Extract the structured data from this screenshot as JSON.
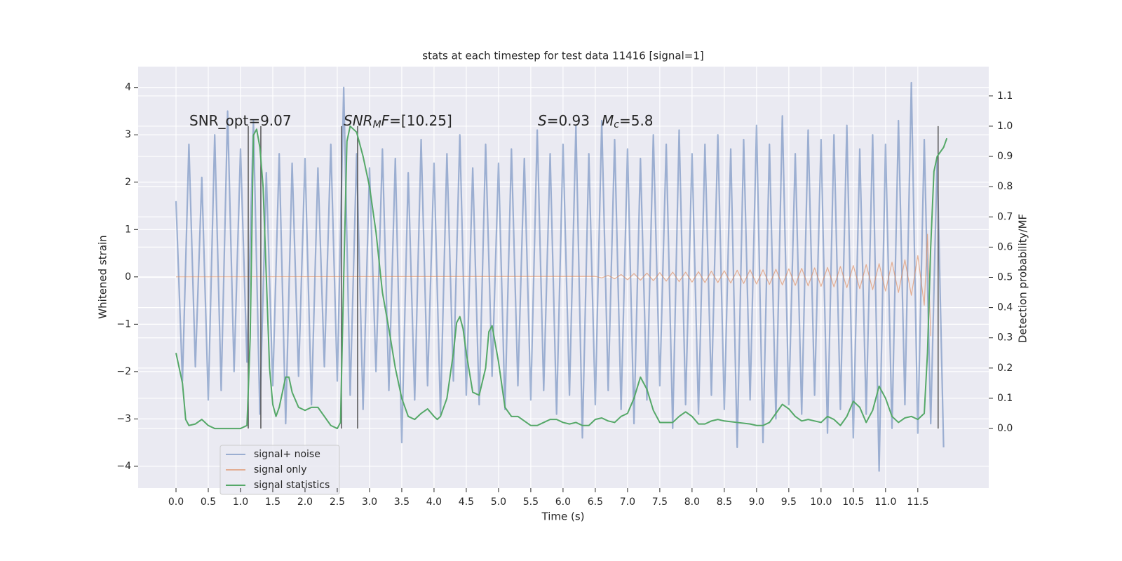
{
  "chart_data": {
    "type": "line",
    "title": "stats at each timestep for test data 11416 [signal=1]",
    "x_label": "Time (s)",
    "y_label": "Whitened strain",
    "y2_label": "Detection probability/MF",
    "xlim": [
      -0.587,
      12.6
    ],
    "ylim": [
      -4.46,
      4.44
    ],
    "y2lim": [
      -0.197,
      1.197
    ],
    "xticks": [
      {
        "value": 0,
        "label": "0.0"
      },
      0.5,
      {
        "value": 1,
        "label": "1.0"
      },
      1.5,
      {
        "value": 2,
        "label": "2.0"
      },
      2.5,
      {
        "value": 3,
        "label": "3.0"
      },
      3.5,
      {
        "value": 4,
        "label": "4.0"
      },
      4.5,
      {
        "value": 5,
        "label": "5.0"
      },
      5.5,
      {
        "value": 6,
        "label": "6.0"
      },
      6.5,
      {
        "value": 7,
        "label": "7.0"
      },
      7.5,
      {
        "value": 8,
        "label": "8.0"
      },
      8.5,
      {
        "value": 9,
        "label": "9.0"
      },
      9.5,
      {
        "value": 10,
        "label": "10.0"
      },
      10.5,
      {
        "value": 11,
        "label": "11.0"
      },
      11.5
    ],
    "yticks": [
      {
        "value": -4,
        "label": "−4"
      },
      {
        "value": -3,
        "label": "−3"
      },
      {
        "value": -2,
        "label": "−2"
      },
      {
        "value": -1,
        "label": "−1"
      },
      0,
      1,
      2,
      3,
      4
    ],
    "y2ticks": [
      {
        "value": 0,
        "label": "0.0"
      },
      0.1,
      0.2,
      0.3,
      0.4,
      0.5,
      0.6,
      0.7,
      0.8,
      0.9,
      {
        "value": 1,
        "label": "1.0"
      },
      1.1
    ],
    "grid": true,
    "legend": "lower left",
    "background": "#eaeaf2",
    "series": [
      {
        "name": "signal+ noise",
        "color": "#4c72b0",
        "opacity": 0.5,
        "x": [
          0.0,
          0.1,
          0.2,
          0.3,
          0.4,
          0.5,
          0.6,
          0.7,
          0.8,
          0.9,
          1.0,
          1.1,
          1.2,
          1.3,
          1.4,
          1.5,
          1.6,
          1.7,
          1.8,
          1.9,
          2.0,
          2.1,
          2.2,
          2.3,
          2.4,
          2.5,
          2.6,
          2.7,
          2.8,
          2.9,
          3.0,
          3.1,
          3.2,
          3.3,
          3.4,
          3.5,
          3.6,
          3.7,
          3.8,
          3.9,
          4.0,
          4.1,
          4.2,
          4.3,
          4.4,
          4.5,
          4.6,
          4.7,
          4.8,
          4.9,
          5.0,
          5.1,
          5.2,
          5.3,
          5.4,
          5.5,
          5.6,
          5.7,
          5.8,
          5.9,
          6.0,
          6.1,
          6.2,
          6.3,
          6.4,
          6.5,
          6.6,
          6.7,
          6.8,
          6.9,
          7.0,
          7.1,
          7.2,
          7.3,
          7.4,
          7.5,
          7.6,
          7.7,
          7.8,
          7.9,
          8.0,
          8.1,
          8.2,
          8.3,
          8.4,
          8.5,
          8.6,
          8.7,
          8.8,
          8.9,
          9.0,
          9.1,
          9.2,
          9.3,
          9.4,
          9.5,
          9.6,
          9.7,
          9.8,
          9.9,
          10.0,
          10.1,
          10.2,
          10.3,
          10.4,
          10.5,
          10.6,
          10.7,
          10.8,
          10.9,
          11.0,
          11.1,
          11.2,
          11.3,
          11.4,
          11.5,
          11.6,
          11.7,
          11.8,
          11.9
        ],
        "values": [
          1.6,
          -2.2,
          2.8,
          -1.9,
          2.1,
          -2.6,
          3.0,
          -2.4,
          3.5,
          -2.0,
          2.7,
          -1.8,
          3.3,
          -2.9,
          2.2,
          -2.3,
          2.6,
          -3.1,
          2.4,
          -2.1,
          2.5,
          -2.7,
          2.3,
          -1.9,
          2.8,
          -2.2,
          4.0,
          -2.5,
          2.6,
          -2.8,
          2.3,
          -2.0,
          2.7,
          -2.4,
          2.5,
          -3.5,
          2.2,
          -2.6,
          2.9,
          -2.3,
          2.4,
          -2.9,
          2.6,
          -2.2,
          3.0,
          -2.5,
          2.3,
          -2.7,
          2.8,
          -2.1,
          2.4,
          -2.8,
          2.7,
          -2.3,
          2.5,
          -2.6,
          3.1,
          -2.4,
          2.6,
          -2.9,
          2.8,
          -2.5,
          3.2,
          -3.4,
          2.6,
          -2.7,
          3.3,
          -2.4,
          2.9,
          -2.8,
          2.7,
          -3.1,
          2.5,
          -2.6,
          3.0,
          -2.3,
          2.8,
          -3.2,
          3.1,
          -2.7,
          2.6,
          -2.9,
          2.8,
          -2.5,
          3.0,
          -2.8,
          2.7,
          -3.6,
          2.9,
          -2.6,
          3.2,
          -3.5,
          2.8,
          -3.0,
          3.4,
          -2.7,
          2.6,
          -2.9,
          3.1,
          -2.5,
          2.9,
          -3.3,
          3.0,
          -2.8,
          3.2,
          -3.4,
          2.7,
          -2.9,
          3.0,
          -4.1,
          2.8,
          -3.2,
          3.3,
          -2.7,
          4.1,
          -3.3,
          2.9,
          -3.1,
          2.5,
          -3.6
        ]
      },
      {
        "name": "signal only",
        "color": "#dd8452",
        "opacity": 0.6,
        "x": [
          0.0,
          6.5,
          6.6,
          6.7,
          6.8,
          6.9,
          7.0,
          7.1,
          7.2,
          7.3,
          7.4,
          7.5,
          7.6,
          7.7,
          7.8,
          7.9,
          8.0,
          8.1,
          8.2,
          8.3,
          8.4,
          8.5,
          8.6,
          8.7,
          8.8,
          8.9,
          9.0,
          9.1,
          9.2,
          9.3,
          9.4,
          9.5,
          9.6,
          9.7,
          9.8,
          9.9,
          10.0,
          10.1,
          10.2,
          10.3,
          10.4,
          10.5,
          10.6,
          10.7,
          10.8,
          10.9,
          11.0,
          11.1,
          11.2,
          11.3,
          11.4,
          11.5,
          11.6,
          11.65,
          11.7
        ],
        "values": [
          0,
          0.01,
          -0.02,
          0.03,
          -0.04,
          0.05,
          -0.06,
          0.07,
          -0.07,
          0.08,
          -0.08,
          0.09,
          -0.09,
          0.1,
          -0.1,
          0.1,
          -0.11,
          0.11,
          -0.12,
          0.12,
          -0.12,
          0.13,
          -0.13,
          0.14,
          -0.14,
          0.15,
          -0.15,
          0.15,
          -0.16,
          0.16,
          -0.17,
          0.17,
          -0.18,
          0.18,
          -0.19,
          0.19,
          -0.2,
          0.2,
          -0.21,
          0.22,
          -0.23,
          0.24,
          -0.25,
          0.26,
          -0.27,
          0.28,
          -0.3,
          0.31,
          -0.33,
          0.36,
          -0.39,
          0.45,
          -0.6,
          0.9,
          -1.25
        ]
      },
      {
        "name": "signal statistics",
        "color": "#55a868",
        "opacity": 1,
        "axis": "y2",
        "x": [
          0.0,
          0.1,
          0.15,
          0.2,
          0.3,
          0.4,
          0.5,
          0.6,
          0.8,
          1.0,
          1.1,
          1.15,
          1.2,
          1.25,
          1.3,
          1.35,
          1.4,
          1.45,
          1.5,
          1.55,
          1.6,
          1.7,
          1.75,
          1.8,
          1.9,
          2.0,
          2.1,
          2.2,
          2.3,
          2.4,
          2.5,
          2.55,
          2.6,
          2.65,
          2.7,
          2.8,
          2.9,
          3.0,
          3.1,
          3.2,
          3.3,
          3.4,
          3.5,
          3.6,
          3.7,
          3.8,
          3.9,
          4.0,
          4.05,
          4.1,
          4.2,
          4.3,
          4.35,
          4.4,
          4.45,
          4.5,
          4.6,
          4.7,
          4.8,
          4.85,
          4.9,
          5.0,
          5.1,
          5.2,
          5.3,
          5.4,
          5.5,
          5.6,
          5.7,
          5.8,
          5.9,
          6.0,
          6.1,
          6.2,
          6.3,
          6.4,
          6.5,
          6.6,
          6.7,
          6.8,
          6.9,
          7.0,
          7.1,
          7.2,
          7.3,
          7.4,
          7.5,
          7.6,
          7.7,
          7.8,
          7.9,
          8.0,
          8.1,
          8.2,
          8.3,
          8.4,
          8.5,
          8.7,
          8.9,
          9.0,
          9.1,
          9.2,
          9.3,
          9.4,
          9.5,
          9.6,
          9.7,
          9.8,
          9.9,
          10.0,
          10.1,
          10.2,
          10.3,
          10.4,
          10.5,
          10.6,
          10.7,
          10.8,
          10.9,
          11.0,
          11.1,
          11.2,
          11.3,
          11.4,
          11.5,
          11.6,
          11.65,
          11.7,
          11.75,
          11.8,
          11.9,
          11.95
        ],
        "values": [
          0.25,
          0.15,
          0.03,
          0.01,
          0.015,
          0.03,
          0.01,
          0.0,
          0.0,
          0.0,
          0.01,
          0.3,
          0.97,
          0.99,
          0.93,
          0.8,
          0.5,
          0.2,
          0.08,
          0.04,
          0.07,
          0.17,
          0.17,
          0.12,
          0.07,
          0.06,
          0.07,
          0.07,
          0.04,
          0.01,
          0.0,
          0.02,
          0.5,
          0.95,
          1.0,
          0.98,
          0.9,
          0.8,
          0.65,
          0.45,
          0.33,
          0.2,
          0.1,
          0.04,
          0.03,
          0.05,
          0.065,
          0.04,
          0.03,
          0.04,
          0.1,
          0.25,
          0.35,
          0.37,
          0.33,
          0.25,
          0.12,
          0.11,
          0.2,
          0.32,
          0.34,
          0.22,
          0.07,
          0.04,
          0.04,
          0.025,
          0.01,
          0.01,
          0.02,
          0.03,
          0.03,
          0.02,
          0.015,
          0.02,
          0.01,
          0.01,
          0.03,
          0.035,
          0.025,
          0.02,
          0.04,
          0.05,
          0.1,
          0.17,
          0.13,
          0.06,
          0.02,
          0.02,
          0.02,
          0.04,
          0.055,
          0.04,
          0.015,
          0.015,
          0.025,
          0.03,
          0.025,
          0.02,
          0.015,
          0.01,
          0.01,
          0.02,
          0.05,
          0.08,
          0.065,
          0.04,
          0.025,
          0.03,
          0.025,
          0.02,
          0.04,
          0.03,
          0.01,
          0.04,
          0.09,
          0.07,
          0.02,
          0.06,
          0.14,
          0.1,
          0.04,
          0.02,
          0.035,
          0.04,
          0.03,
          0.05,
          0.25,
          0.6,
          0.85,
          0.9,
          0.93,
          0.96
        ]
      }
    ],
    "vlines": {
      "x": [
        1.12,
        1.315,
        2.565,
        2.815,
        11.815
      ],
      "ymin": 0,
      "ymax": 1,
      "axis": "y2",
      "color": "#555555"
    },
    "annotations": [
      {
        "text": "SNR_opt=9.07"
      },
      {
        "symbol": "SNR",
        "subscript": "M",
        "symbol2": "F",
        "text": "=[10.25]"
      },
      {
        "symbol": "S",
        "text": "=0.93"
      },
      {
        "symbol": "M",
        "subscript": "c",
        "text": "=5.8"
      }
    ]
  }
}
